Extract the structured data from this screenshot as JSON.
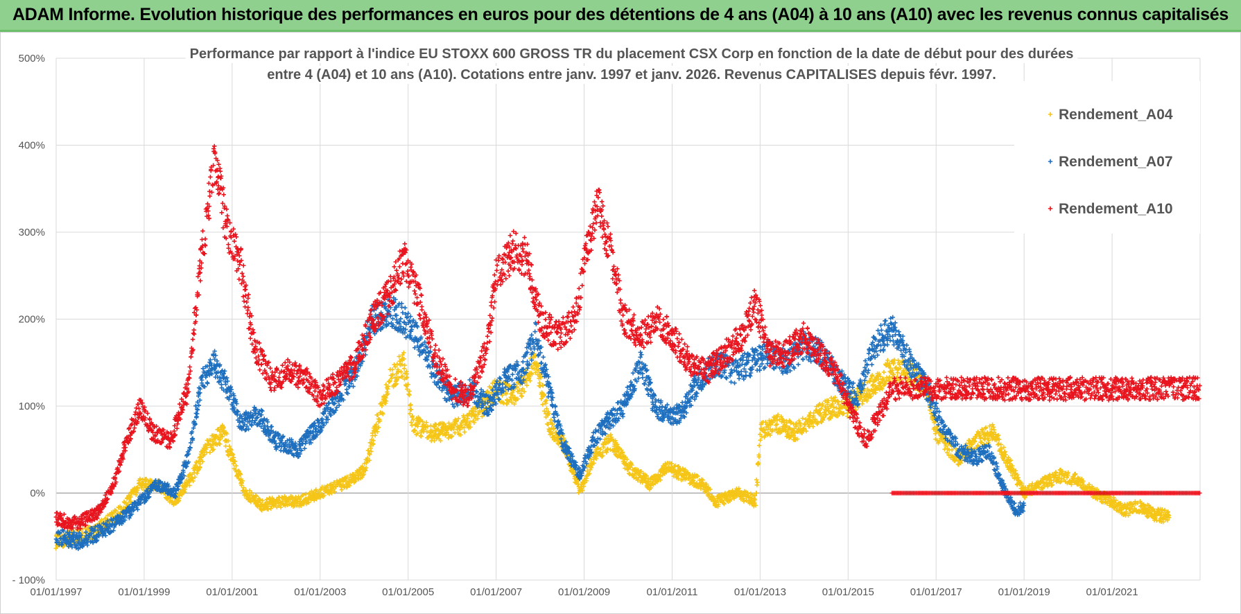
{
  "banner": {
    "title": "ADAM Informe. Evolution historique des performances en euros pour des détentions de 4 ans (A04) à 10 ans (A10) avec les revenus connus capitalisés"
  },
  "chart_data": {
    "type": "scatter",
    "title_lines": [
      "Performance par rapport à l'indice EU STOXX 600 GROSS TR  du placement CSX Corp en fonction de la date de début pour des durées",
      "entre 4 (A04) et 10 ans (A10).  Cotations entre janv. 1997 et janv. 2026. Revenus CAPITALISES depuis févr. 1997."
    ],
    "x_ticks": [
      "01/01/1997",
      "01/01/1999",
      "01/01/2001",
      "01/01/2003",
      "01/01/2005",
      "01/01/2007",
      "01/01/2009",
      "01/01/2011",
      "01/01/2013",
      "01/01/2015",
      "01/01/2017",
      "01/01/2019",
      "01/01/2021"
    ],
    "x_range": [
      1997.0,
      2023.0
    ],
    "y_ticks": [
      "500%",
      "400%",
      "300%",
      "200%",
      "100%",
      "0%",
      "- 100%"
    ],
    "y_range": [
      -100,
      500
    ],
    "grid": true,
    "legend_position": "top-right",
    "marker": "+",
    "series": [
      {
        "name": "Rendement_A04",
        "color": "#f5c518",
        "end_year": 2022.3,
        "points": [
          [
            1997.0,
            -55
          ],
          [
            1997.5,
            -50
          ],
          [
            1998.0,
            -40
          ],
          [
            1998.5,
            -20
          ],
          [
            1998.9,
            10
          ],
          [
            1999.3,
            10
          ],
          [
            1999.7,
            -10
          ],
          [
            2000.1,
            20
          ],
          [
            2000.4,
            50
          ],
          [
            2000.8,
            70
          ],
          [
            2001.0,
            40
          ],
          [
            2001.3,
            0
          ],
          [
            2001.7,
            -15
          ],
          [
            2002.0,
            -10
          ],
          [
            2002.5,
            -10
          ],
          [
            2003.0,
            0
          ],
          [
            2003.5,
            10
          ],
          [
            2004.0,
            25
          ],
          [
            2004.3,
            80
          ],
          [
            2004.6,
            130
          ],
          [
            2004.9,
            150
          ],
          [
            2005.1,
            80
          ],
          [
            2005.5,
            70
          ],
          [
            2005.9,
            70
          ],
          [
            2006.3,
            80
          ],
          [
            2006.7,
            100
          ],
          [
            2007.0,
            120
          ],
          [
            2007.4,
            110
          ],
          [
            2007.9,
            150
          ],
          [
            2008.2,
            80
          ],
          [
            2008.6,
            50
          ],
          [
            2008.9,
            0
          ],
          [
            2009.2,
            40
          ],
          [
            2009.6,
            60
          ],
          [
            2010.0,
            30
          ],
          [
            2010.5,
            10
          ],
          [
            2010.9,
            30
          ],
          [
            2011.3,
            20
          ],
          [
            2011.7,
            10
          ],
          [
            2012.0,
            -10
          ],
          [
            2012.5,
            0
          ],
          [
            2012.9,
            -10
          ],
          [
            2013.0,
            70
          ],
          [
            2013.4,
            80
          ],
          [
            2013.8,
            70
          ],
          [
            2014.3,
            90
          ],
          [
            2014.7,
            100
          ],
          [
            2015.0,
            100
          ],
          [
            2015.5,
            120
          ],
          [
            2015.9,
            140
          ],
          [
            2016.4,
            140
          ],
          [
            2016.8,
            120
          ],
          [
            2017.0,
            70
          ],
          [
            2017.5,
            40
          ],
          [
            2017.9,
            60
          ],
          [
            2018.3,
            70
          ],
          [
            2018.7,
            30
          ],
          [
            2019.0,
            0
          ],
          [
            2019.4,
            10
          ],
          [
            2019.8,
            20
          ],
          [
            2020.2,
            15
          ],
          [
            2020.6,
            0
          ],
          [
            2021.0,
            -10
          ],
          [
            2021.3,
            -20
          ],
          [
            2021.6,
            -15
          ],
          [
            2022.0,
            -25
          ],
          [
            2022.3,
            -28
          ]
        ]
      },
      {
        "name": "Rendement_A07",
        "color": "#1f6fbf",
        "end_year": 2019.0,
        "points": [
          [
            1997.0,
            -50
          ],
          [
            1997.5,
            -55
          ],
          [
            1998.0,
            -45
          ],
          [
            1998.5,
            -30
          ],
          [
            1998.9,
            -10
          ],
          [
            1999.3,
            10
          ],
          [
            1999.7,
            0
          ],
          [
            2000.0,
            40
          ],
          [
            2000.3,
            130
          ],
          [
            2000.6,
            150
          ],
          [
            2000.9,
            120
          ],
          [
            2001.2,
            80
          ],
          [
            2001.6,
            90
          ],
          [
            2002.0,
            60
          ],
          [
            2002.5,
            50
          ],
          [
            2003.0,
            80
          ],
          [
            2003.4,
            110
          ],
          [
            2003.8,
            140
          ],
          [
            2004.2,
            200
          ],
          [
            2004.6,
            210
          ],
          [
            2004.9,
            200
          ],
          [
            2005.3,
            170
          ],
          [
            2005.7,
            130
          ],
          [
            2006.0,
            110
          ],
          [
            2006.4,
            120
          ],
          [
            2006.8,
            100
          ],
          [
            2007.2,
            130
          ],
          [
            2007.6,
            140
          ],
          [
            2007.9,
            180
          ],
          [
            2008.2,
            120
          ],
          [
            2008.5,
            60
          ],
          [
            2008.9,
            20
          ],
          [
            2009.2,
            60
          ],
          [
            2009.5,
            80
          ],
          [
            2009.9,
            100
          ],
          [
            2010.3,
            150
          ],
          [
            2010.6,
            100
          ],
          [
            2010.9,
            90
          ],
          [
            2011.2,
            90
          ],
          [
            2011.6,
            130
          ],
          [
            2012.0,
            150
          ],
          [
            2012.4,
            140
          ],
          [
            2012.8,
            150
          ],
          [
            2013.2,
            160
          ],
          [
            2013.6,
            150
          ],
          [
            2014.0,
            170
          ],
          [
            2014.4,
            160
          ],
          [
            2014.8,
            130
          ],
          [
            2015.2,
            110
          ],
          [
            2015.6,
            170
          ],
          [
            2016.0,
            190
          ],
          [
            2016.4,
            150
          ],
          [
            2016.8,
            120
          ],
          [
            2017.1,
            80
          ],
          [
            2017.5,
            50
          ],
          [
            2017.9,
            40
          ],
          [
            2018.2,
            50
          ],
          [
            2018.5,
            10
          ],
          [
            2018.8,
            -20
          ],
          [
            2019.0,
            -15
          ]
        ]
      },
      {
        "name": "Rendement_A10",
        "color": "#e8141e",
        "end_year": 2023.0,
        "points": [
          [
            1997.0,
            -30
          ],
          [
            1997.5,
            -35
          ],
          [
            1998.0,
            -20
          ],
          [
            1998.3,
            10
          ],
          [
            1998.6,
            60
          ],
          [
            1998.9,
            100
          ],
          [
            1999.2,
            70
          ],
          [
            1999.6,
            60
          ],
          [
            2000.0,
            120
          ],
          [
            2000.3,
            270
          ],
          [
            2000.6,
            380
          ],
          [
            2000.9,
            300
          ],
          [
            2001.2,
            260
          ],
          [
            2001.5,
            170
          ],
          [
            2001.9,
            130
          ],
          [
            2002.3,
            140
          ],
          [
            2002.7,
            130
          ],
          [
            2003.0,
            110
          ],
          [
            2003.4,
            130
          ],
          [
            2003.8,
            150
          ],
          [
            2004.2,
            200
          ],
          [
            2004.6,
            230
          ],
          [
            2004.9,
            270
          ],
          [
            2005.2,
            230
          ],
          [
            2005.6,
            160
          ],
          [
            2006.0,
            120
          ],
          [
            2006.4,
            110
          ],
          [
            2006.8,
            170
          ],
          [
            2007.0,
            250
          ],
          [
            2007.4,
            280
          ],
          [
            2007.7,
            270
          ],
          [
            2008.0,
            200
          ],
          [
            2008.4,
            180
          ],
          [
            2008.8,
            200
          ],
          [
            2009.0,
            260
          ],
          [
            2009.3,
            330
          ],
          [
            2009.6,
            280
          ],
          [
            2009.9,
            200
          ],
          [
            2010.3,
            180
          ],
          [
            2010.7,
            200
          ],
          [
            2011.0,
            180
          ],
          [
            2011.4,
            150
          ],
          [
            2011.8,
            140
          ],
          [
            2012.2,
            160
          ],
          [
            2012.6,
            180
          ],
          [
            2012.9,
            220
          ],
          [
            2013.2,
            160
          ],
          [
            2013.6,
            160
          ],
          [
            2014.0,
            180
          ],
          [
            2014.4,
            160
          ],
          [
            2014.8,
            130
          ],
          [
            2015.1,
            90
          ],
          [
            2015.4,
            60
          ],
          [
            2015.8,
            100
          ],
          [
            2016.0,
            120
          ]
        ],
        "tail": {
          "from_year": 2016.0,
          "to_year": 2023.0,
          "value": 0
        }
      }
    ]
  }
}
